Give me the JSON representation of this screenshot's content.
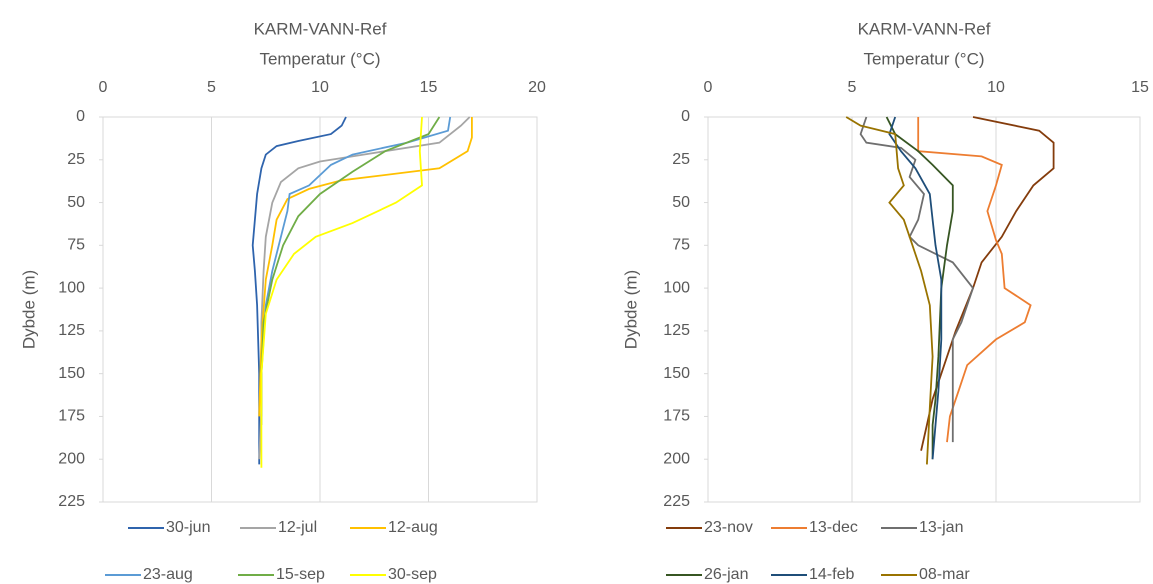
{
  "chart_data": [
    {
      "type": "line",
      "title": "KARM-VANN-Ref",
      "xlabel": "Temperatur (°C)",
      "ylabel": "Dybde (m)",
      "xlim": [
        0,
        20
      ],
      "xticks": [
        0,
        5,
        10,
        15,
        20
      ],
      "ylim": [
        0,
        225
      ],
      "yticks": [
        0,
        25,
        50,
        75,
        100,
        125,
        150,
        175,
        200,
        225
      ],
      "y_inverted": true,
      "x_axis_top": true,
      "grid": true,
      "legend": "bottom",
      "series": [
        {
          "name": "30-jun",
          "color": "#2f64ad",
          "x": [
            11.2,
            11,
            10.5,
            9,
            8,
            7.5,
            7.3,
            7.1,
            7.0,
            6.9,
            7,
            7.1,
            7.2,
            7.2
          ],
          "values": [
            0,
            5,
            10,
            14,
            17,
            22,
            30,
            45,
            60,
            75,
            90,
            110,
            150,
            203
          ]
        },
        {
          "name": "12-jul",
          "color": "#a5a5a5",
          "x": [
            16.9,
            16.5,
            15.5,
            12,
            10,
            9,
            8.2,
            7.8,
            7.5,
            7.4,
            7.3,
            7.3,
            7.2
          ],
          "values": [
            0,
            5,
            15,
            22,
            26,
            30,
            38,
            50,
            70,
            90,
            120,
            170,
            200
          ]
        },
        {
          "name": "12-aug",
          "color": "#ffc000",
          "x": [
            17,
            17,
            16.8,
            15.5,
            11,
            9.5,
            8.5,
            8,
            7.8,
            7.5,
            7.3,
            7.2
          ],
          "values": [
            0,
            12,
            20,
            30,
            37,
            42,
            48,
            60,
            75,
            95,
            130,
            175
          ]
        },
        {
          "name": "23-aug",
          "color": "#5b9bd5",
          "x": [
            16,
            15.9,
            14,
            11.5,
            10.5,
            9.5,
            8.6,
            8.5,
            8.2,
            7.8,
            7.5,
            7.3,
            7.3
          ],
          "values": [
            0,
            8,
            15,
            22,
            28,
            40,
            45,
            55,
            70,
            90,
            110,
            150,
            175
          ]
        },
        {
          "name": "15-sep",
          "color": "#70ad47",
          "x": [
            15.5,
            15,
            13,
            11.5,
            10,
            9,
            8.3,
            7.8,
            7.4,
            7.3,
            7.3
          ],
          "values": [
            0,
            10,
            20,
            32,
            45,
            58,
            75,
            95,
            120,
            150,
            180
          ]
        },
        {
          "name": "30-sep",
          "color": "#ffff00",
          "x": [
            14.7,
            14.6,
            14.7,
            13.5,
            11.5,
            9.8,
            8.8,
            8,
            7.5,
            7.3,
            7.3
          ],
          "values": [
            0,
            20,
            40,
            50,
            62,
            70,
            80,
            95,
            115,
            150,
            205
          ]
        }
      ]
    },
    {
      "type": "line",
      "title": "KARM-VANN-Ref",
      "xlabel": "Temperatur (°C)",
      "ylabel": "Dybde (m)",
      "xlim": [
        0,
        15
      ],
      "xticks": [
        0,
        5,
        10,
        15
      ],
      "ylim": [
        0,
        225
      ],
      "yticks": [
        0,
        25,
        50,
        75,
        100,
        125,
        150,
        175,
        200,
        225
      ],
      "y_inverted": true,
      "x_axis_top": true,
      "grid": true,
      "legend": "bottom",
      "series": [
        {
          "name": "23-nov",
          "color": "#843c0c",
          "x": [
            9.2,
            11.5,
            12,
            12,
            11.3,
            10.7,
            10.2,
            9.5,
            9.2,
            8.6,
            8.1,
            7.8,
            7.6,
            7.4
          ],
          "values": [
            0,
            8,
            15,
            30,
            40,
            55,
            70,
            85,
            100,
            125,
            150,
            165,
            180,
            195
          ]
        },
        {
          "name": "13-dec",
          "color": "#ed7d31",
          "x": [
            7.3,
            7.3,
            9.5,
            10.2,
            10,
            9.7,
            10,
            10.2,
            10.3,
            11.2,
            11,
            10,
            9,
            8.7,
            8.4,
            8.3
          ],
          "values": [
            0,
            20,
            23,
            28,
            40,
            55,
            72,
            80,
            100,
            110,
            120,
            130,
            145,
            160,
            175,
            190
          ]
        },
        {
          "name": "13-jan",
          "color": "#6f6f6f",
          "x": [
            5.5,
            5.3,
            5.5,
            6.7,
            7.2,
            7,
            7.5,
            7.3,
            7,
            7.3,
            8.5,
            9.2,
            8.8,
            8.5,
            8.5
          ],
          "values": [
            0,
            10,
            15,
            18,
            25,
            35,
            45,
            60,
            70,
            75,
            85,
            100,
            120,
            130,
            190
          ]
        },
        {
          "name": "26-jan",
          "color": "#375623",
          "x": [
            6.2,
            6.5,
            7.3,
            7.8,
            8.5,
            8.5,
            8.3,
            8.1,
            8,
            7.9,
            7.8,
            7.8
          ],
          "values": [
            0,
            10,
            20,
            28,
            40,
            55,
            75,
            100,
            140,
            165,
            180,
            200
          ]
        },
        {
          "name": "14-feb",
          "color": "#1f4e79",
          "x": [
            6.5,
            6.3,
            6.7,
            7.2,
            7.7,
            7.8,
            7.9,
            8.1,
            8.1,
            8.0,
            7.9,
            7.8
          ],
          "values": [
            0,
            10,
            20,
            30,
            45,
            60,
            75,
            95,
            130,
            160,
            180,
            200
          ]
        },
        {
          "name": "08-mar",
          "color": "#997300",
          "x": [
            4.8,
            5.3,
            6.5,
            6.6,
            6.8,
            6.3,
            6.8,
            7,
            7.4,
            7.7,
            7.8,
            7.7,
            7.6
          ],
          "values": [
            0,
            5,
            10,
            30,
            40,
            50,
            60,
            70,
            90,
            110,
            140,
            170,
            203
          ]
        }
      ]
    }
  ]
}
